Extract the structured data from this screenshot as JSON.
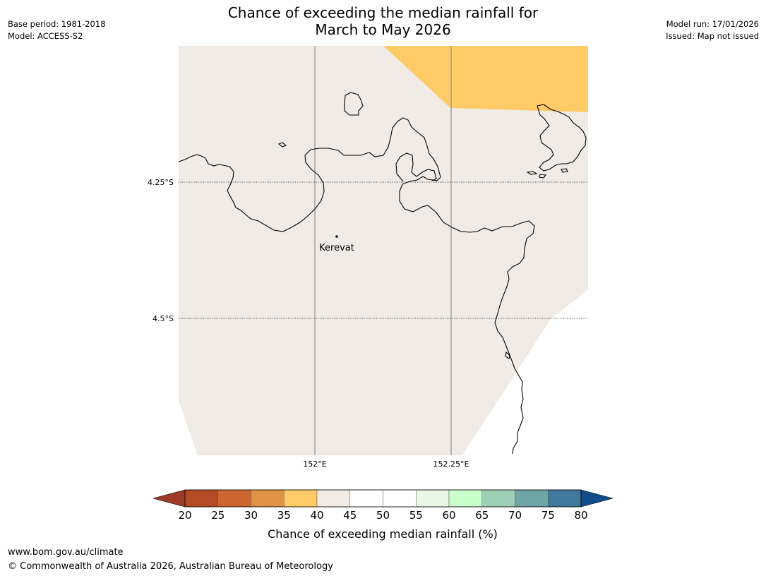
{
  "header": {
    "title_line1": "Chance of exceeding the median rainfall for",
    "title_line2": "March to May 2026",
    "base_period": "Base period: 1981-2018",
    "model": "Model: ACCESS-S2",
    "model_run": "Model run: 17/01/2026",
    "issued": "Issued: Map not issued"
  },
  "map": {
    "lat_labels": [
      "4.25°S",
      "4.5°S"
    ],
    "lon_labels": [
      "152°E",
      "152.25°E"
    ],
    "place": {
      "name": "Kerevat"
    },
    "colors": {
      "land_40_45": "#f0ebe5",
      "band_35_40": "#fecb67",
      "coast": "#000000",
      "grid": "#808080"
    }
  },
  "legend": {
    "label": "Chance of exceeding median rainfall (%)",
    "ticks": [
      "20",
      "25",
      "30",
      "35",
      "40",
      "45",
      "50",
      "55",
      "60",
      "65",
      "70",
      "75",
      "80"
    ],
    "colors": [
      "#9e3a26",
      "#b34b24",
      "#cd6631",
      "#e19244",
      "#fecb67",
      "#f0ebe5",
      "#ffffff",
      "#ffffff",
      "#eaf7e6",
      "#c9ffc9",
      "#9ed0b7",
      "#6fa5a5",
      "#3f799b",
      "#104f8c"
    ]
  },
  "footer": {
    "url": "www.bom.gov.au/climate",
    "copyright": "© Commonwealth of Australia 2026, Australian Bureau of Meteorology"
  }
}
